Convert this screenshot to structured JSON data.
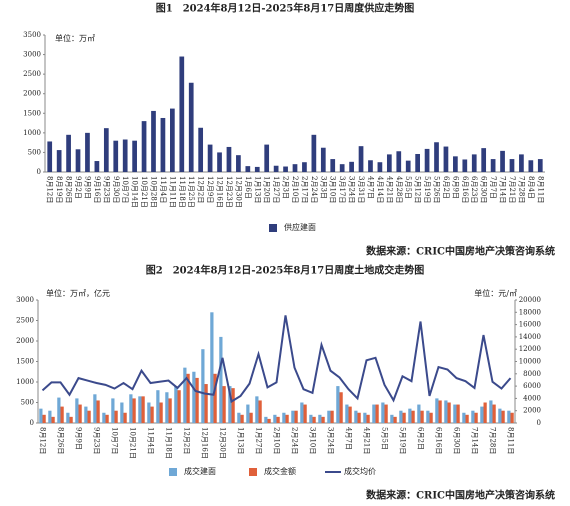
{
  "chart_data": [
    {
      "type": "bar",
      "title": "图1　2024年8月12日-2025年8月17日周度供应走势图",
      "y_label": "单位：万㎡",
      "note": "数据来源：CRIC中国房地产决策咨询系统",
      "legend": "bottom",
      "categories": [
        "8月12日",
        "8月19日",
        "8月26日",
        "9月2日",
        "9月9日",
        "9月16日",
        "9月23日",
        "9月30日",
        "10月7日",
        "10月14日",
        "10月21日",
        "10月28日",
        "11月4日",
        "11月11日",
        "11月18日",
        "11月25日",
        "12月2日",
        "12月9日",
        "12月16日",
        "12月23日",
        "12月30日",
        "1月6日",
        "1月13日",
        "1月20日",
        "1月27日",
        "2月3日",
        "2月10日",
        "2月17日",
        "2月24日",
        "3月3日",
        "3月10日",
        "3月17日",
        "3月24日",
        "3月31日",
        "4月7日",
        "4月14日",
        "4月21日",
        "4月28日",
        "5月5日",
        "5月12日",
        "5月19日",
        "5月26日",
        "6月2日",
        "6月9日",
        "6月16日",
        "6月23日",
        "6月30日",
        "7月7日",
        "7月14日",
        "7月21日",
        "7月28日",
        "8月4日",
        "8月11日"
      ],
      "series": [
        {
          "name": "供应建面",
          "color": "#2f3d7c",
          "values": [
            780,
            560,
            950,
            580,
            1000,
            280,
            1120,
            800,
            830,
            800,
            1300,
            1560,
            1380,
            1620,
            2950,
            2280,
            1130,
            700,
            500,
            640,
            430,
            150,
            130,
            700,
            160,
            140,
            200,
            250,
            950,
            620,
            330,
            200,
            260,
            660,
            300,
            250,
            450,
            530,
            290,
            460,
            590,
            760,
            650,
            400,
            320,
            450,
            610,
            330,
            540,
            330,
            450,
            300,
            330
          ]
        }
      ],
      "ylim": [
        0,
        3500
      ],
      "yticks": [
        0,
        500,
        1000,
        1500,
        2000,
        2500,
        3000,
        3500
      ]
    },
    {
      "type": "bar_line",
      "title": "图2　2024年8月12日-2025年8月17日周度土地成交走势图",
      "y_label": "单位：万㎡，亿元",
      "y2_label": "单位：元/㎡",
      "note": "数据来源：CRIC中国房地产决策咨询系统",
      "legend": "bottom",
      "categories": [
        "8月12日",
        null,
        "8月26日",
        null,
        "9月9日",
        null,
        "9月23日",
        null,
        "10月7日",
        null,
        "10月21日",
        null,
        "11月4日",
        null,
        "11月18日",
        null,
        "12月2日",
        null,
        "12月16日",
        null,
        "12月30日",
        null,
        "1月13日",
        null,
        "1月27日",
        null,
        "2月10日",
        null,
        "2月24日",
        null,
        "3月10日",
        null,
        "3月24日",
        null,
        "4月7日",
        null,
        "4月21日",
        null,
        "5月5日",
        null,
        "5月19日",
        null,
        "6月2日",
        null,
        "6月16日",
        null,
        "6月30日",
        null,
        "7月14日",
        null,
        "7月28日",
        null,
        "8月11日"
      ],
      "series": [
        {
          "name": "成交建面",
          "color": "#6fa8d6",
          "kind": "bar",
          "values": [
            350,
            300,
            620,
            250,
            600,
            400,
            700,
            250,
            600,
            500,
            700,
            650,
            500,
            800,
            750,
            900,
            1350,
            1250,
            1800,
            2700,
            2100,
            900,
            250,
            450,
            650,
            150,
            200,
            250,
            300,
            500,
            200,
            200,
            300,
            900,
            450,
            300,
            250,
            450,
            500,
            200,
            300,
            350,
            450,
            300,
            600,
            550,
            450,
            250,
            300,
            400,
            550,
            350,
            300
          ]
        },
        {
          "name": "成交金额",
          "color": "#e0603a",
          "kind": "bar",
          "values": [
            200,
            150,
            400,
            150,
            450,
            300,
            550,
            200,
            300,
            250,
            600,
            650,
            400,
            500,
            600,
            800,
            1200,
            1100,
            950,
            1200,
            900,
            850,
            200,
            250,
            550,
            100,
            150,
            200,
            300,
            450,
            150,
            150,
            300,
            750,
            400,
            250,
            200,
            450,
            450,
            150,
            250,
            300,
            300,
            250,
            550,
            500,
            450,
            200,
            250,
            500,
            450,
            300,
            250
          ]
        },
        {
          "name": "成交均价",
          "color": "#3b4a8c",
          "kind": "line",
          "axis": "y2",
          "values": [
            5300,
            6600,
            6600,
            4600,
            7300,
            6900,
            6500,
            6200,
            5600,
            6500,
            5500,
            8500,
            6500,
            6700,
            6900,
            5700,
            7300,
            5200,
            4800,
            4600,
            10600,
            3500,
            4400,
            6400,
            11200,
            5800,
            6600,
            17500,
            9000,
            5500,
            4900,
            12700,
            8500,
            7400,
            5500,
            4000,
            10200,
            10600,
            6200,
            3700,
            7600,
            6800,
            16500,
            4400,
            9100,
            8700,
            7300,
            6800,
            5700,
            14300,
            6700,
            5600,
            7300
          ]
        }
      ],
      "ylim": [
        0,
        3000
      ],
      "yticks": [
        0,
        500,
        1000,
        1500,
        2000,
        2500,
        3000
      ],
      "y2lim": [
        0,
        20000
      ],
      "y2ticks": [
        0,
        2000,
        4000,
        6000,
        8000,
        10000,
        12000,
        14000,
        16000,
        18000,
        20000
      ]
    }
  ]
}
